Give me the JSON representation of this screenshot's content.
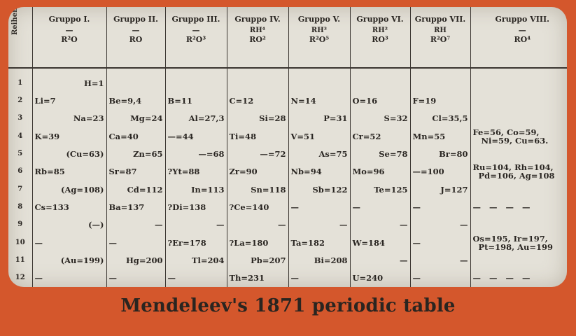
{
  "caption": "Mendeleev's 1871 periodic table",
  "header": {
    "row_label": "Reihen",
    "groups": [
      {
        "name": "Gruppo I.",
        "dash": "—",
        "hydride": "",
        "oxide": "R²O"
      },
      {
        "name": "Gruppo II.",
        "dash": "—",
        "hydride": "",
        "oxide": "RO"
      },
      {
        "name": "Gruppo III.",
        "dash": "—",
        "hydride": "",
        "oxide": "R²O³"
      },
      {
        "name": "Gruppo IV.",
        "dash": "",
        "hydride": "RH⁴",
        "oxide": "RO²"
      },
      {
        "name": "Gruppo V.",
        "dash": "",
        "hydride": "RH³",
        "oxide": "R²O⁵"
      },
      {
        "name": "Gruppo VI.",
        "dash": "",
        "hydride": "RH²",
        "oxide": "RO³"
      },
      {
        "name": "Gruppo VII.",
        "dash": "",
        "hydride": "RH",
        "oxide": "R²O⁷"
      },
      {
        "name": "Gruppo VIII.",
        "dash": "—",
        "hydride": "",
        "oxide": "RO⁴"
      }
    ]
  },
  "rows": [
    {
      "n": "1",
      "cells": [
        {
          "t": "H=1",
          "a": "right"
        },
        {
          "t": "",
          "a": "left"
        },
        {
          "t": "",
          "a": "left"
        },
        {
          "t": "",
          "a": "left"
        },
        {
          "t": "",
          "a": "left"
        },
        {
          "t": "",
          "a": "left"
        },
        {
          "t": "",
          "a": "left"
        },
        {
          "t": "",
          "a": "left"
        }
      ]
    },
    {
      "n": "2",
      "cells": [
        {
          "t": "Li=7",
          "a": "left"
        },
        {
          "t": "Be=9,4",
          "a": "left"
        },
        {
          "t": "B=11",
          "a": "left"
        },
        {
          "t": "C=12",
          "a": "left"
        },
        {
          "t": "N=14",
          "a": "left"
        },
        {
          "t": "O=16",
          "a": "left"
        },
        {
          "t": "F=19",
          "a": "left"
        },
        {
          "t": "",
          "a": "left"
        }
      ]
    },
    {
      "n": "3",
      "cells": [
        {
          "t": "Na=23",
          "a": "right"
        },
        {
          "t": "Mg=24",
          "a": "right"
        },
        {
          "t": "Al=27,3",
          "a": "right"
        },
        {
          "t": "Si=28",
          "a": "right"
        },
        {
          "t": "P=31",
          "a": "right"
        },
        {
          "t": "S=32",
          "a": "right"
        },
        {
          "t": "Cl=35,5",
          "a": "right"
        },
        {
          "t": "",
          "a": "left"
        }
      ]
    },
    {
      "n": "4",
      "cells": [
        {
          "t": "K=39",
          "a": "left"
        },
        {
          "t": "Ca=40",
          "a": "left"
        },
        {
          "t": "—=44",
          "a": "left"
        },
        {
          "t": "Ti=48",
          "a": "left"
        },
        {
          "t": "V=51",
          "a": "left"
        },
        {
          "t": "Cr=52",
          "a": "left"
        },
        {
          "t": "Mn=55",
          "a": "left"
        },
        {
          "t": "Fe=56, Co=59,\n   Ni=59, Cu=63.",
          "a": "g8"
        }
      ]
    },
    {
      "n": "5",
      "cells": [
        {
          "t": "(Cu=63)",
          "a": "right"
        },
        {
          "t": "Zn=65",
          "a": "right"
        },
        {
          "t": "—=68",
          "a": "right"
        },
        {
          "t": "—=72",
          "a": "right"
        },
        {
          "t": "As=75",
          "a": "right"
        },
        {
          "t": "Se=78",
          "a": "right"
        },
        {
          "t": "Br=80",
          "a": "right"
        },
        {
          "t": "",
          "a": "left"
        }
      ]
    },
    {
      "n": "6",
      "cells": [
        {
          "t": "Rb=85",
          "a": "left"
        },
        {
          "t": "Sr=87",
          "a": "left"
        },
        {
          "t": "?Yt=88",
          "a": "left"
        },
        {
          "t": "Zr=90",
          "a": "left"
        },
        {
          "t": "Nb=94",
          "a": "left"
        },
        {
          "t": "Mo=96",
          "a": "left"
        },
        {
          "t": "—=100",
          "a": "left"
        },
        {
          "t": "Ru=104, Rh=104,\n  Pd=106, Ag=108",
          "a": "g8"
        }
      ]
    },
    {
      "n": "7",
      "cells": [
        {
          "t": "(Ag=108)",
          "a": "right"
        },
        {
          "t": "Cd=112",
          "a": "right"
        },
        {
          "t": "In=113",
          "a": "right"
        },
        {
          "t": "Sn=118",
          "a": "right"
        },
        {
          "t": "Sb=122",
          "a": "right"
        },
        {
          "t": "Te=125",
          "a": "right"
        },
        {
          "t": "J=127",
          "a": "right"
        },
        {
          "t": "",
          "a": "left"
        }
      ]
    },
    {
      "n": "8",
      "cells": [
        {
          "t": "Cs=133",
          "a": "left"
        },
        {
          "t": "Ba=137",
          "a": "left"
        },
        {
          "t": "?Di=138",
          "a": "left"
        },
        {
          "t": "?Ce=140",
          "a": "left"
        },
        {
          "t": "—",
          "a": "left"
        },
        {
          "t": "—",
          "a": "left"
        },
        {
          "t": "—",
          "a": "left"
        },
        {
          "t": "—   —   —   —",
          "a": "g8"
        }
      ]
    },
    {
      "n": "9",
      "cells": [
        {
          "t": "(—)",
          "a": "right"
        },
        {
          "t": "—",
          "a": "right"
        },
        {
          "t": "—",
          "a": "right"
        },
        {
          "t": "—",
          "a": "right"
        },
        {
          "t": "—",
          "a": "right"
        },
        {
          "t": "—",
          "a": "right"
        },
        {
          "t": "—",
          "a": "right"
        },
        {
          "t": "",
          "a": "left"
        }
      ]
    },
    {
      "n": "10",
      "cells": [
        {
          "t": "—",
          "a": "left"
        },
        {
          "t": "—",
          "a": "left"
        },
        {
          "t": "?Er=178",
          "a": "left"
        },
        {
          "t": "?La=180",
          "a": "left"
        },
        {
          "t": "Ta=182",
          "a": "left"
        },
        {
          "t": "W=184",
          "a": "left"
        },
        {
          "t": "—",
          "a": "left"
        },
        {
          "t": "Os=195, Ir=197,\n  Pt=198, Au=199",
          "a": "g8"
        }
      ]
    },
    {
      "n": "11",
      "cells": [
        {
          "t": "(Au=199)",
          "a": "right"
        },
        {
          "t": "Hg=200",
          "a": "right"
        },
        {
          "t": "Tl=204",
          "a": "right"
        },
        {
          "t": "Pb=207",
          "a": "right"
        },
        {
          "t": "Bi=208",
          "a": "right"
        },
        {
          "t": "—",
          "a": "right"
        },
        {
          "t": "—",
          "a": "right"
        },
        {
          "t": "",
          "a": "left"
        }
      ]
    },
    {
      "n": "12",
      "cells": [
        {
          "t": "—",
          "a": "left"
        },
        {
          "t": "—",
          "a": "left"
        },
        {
          "t": "—",
          "a": "left"
        },
        {
          "t": "Th=231",
          "a": "left"
        },
        {
          "t": "—",
          "a": "left"
        },
        {
          "t": "U=240",
          "a": "left"
        },
        {
          "t": "—",
          "a": "left"
        },
        {
          "t": "—   —   —   —",
          "a": "g8"
        }
      ]
    }
  ]
}
